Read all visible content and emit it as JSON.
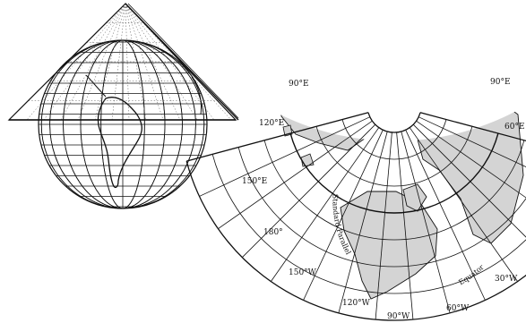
{
  "colors": {
    "ink": "#111111",
    "land_fill": "#d4d4d4",
    "background": "#ffffff"
  },
  "globe_figure": {
    "description_icons": [
      "cone-icon",
      "globe-icon"
    ]
  },
  "projection_map": {
    "meridian_labels": {
      "m90e": "90°E",
      "m90e_right": "90°E",
      "m120e": "120°E",
      "m150e": "150°E",
      "m180": "180°",
      "m150w": "150°W",
      "m120w": "120°W",
      "m90w": "90°W",
      "m60w": "60°W",
      "m30w": "30°W",
      "m60e": "60°E"
    },
    "curve_labels": {
      "standard_parallel": "Standard Parallel",
      "equator": "Equator"
    }
  }
}
